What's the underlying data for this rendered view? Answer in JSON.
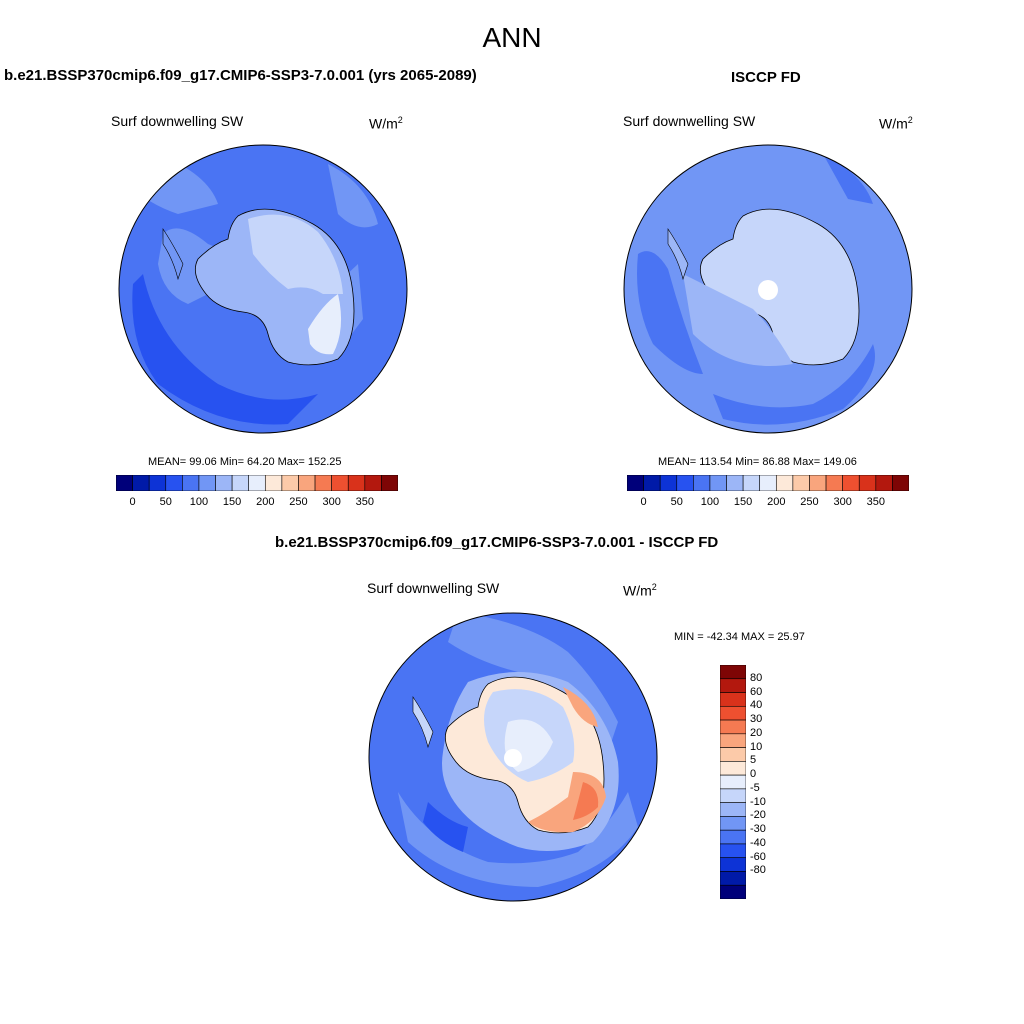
{
  "main_title": "ANN",
  "panels": [
    {
      "title": "b.e21.BSSP370cmip6.f09_g17.CMIP6-SSP3-7.0.001 (yrs 2065-2089)",
      "variable": "Surf downwelling SW",
      "units": "W/m",
      "units_exp": "2",
      "stats": "MEAN=  99.06  Min=  64.20  Max= 152.25"
    },
    {
      "title": "ISCCP FD",
      "variable": "Surf downwelling SW",
      "units": "W/m",
      "units_exp": "2",
      "stats": "MEAN= 113.54  Min=  86.88  Max= 149.06"
    },
    {
      "title": "b.e21.BSSP370cmip6.f09_g17.CMIP6-SSP3-7.0.001 - ISCCP FD",
      "variable": "Surf downwelling SW",
      "units": "W/m",
      "units_exp": "2",
      "stats": "MIN = -42.34 MAX =  25.97"
    }
  ],
  "abs_colorbar": {
    "colors": [
      "#00007a",
      "#001aa8",
      "#0d33d6",
      "#2752f0",
      "#4a74f3",
      "#7196f5",
      "#9cb6f7",
      "#c6d6fa",
      "#e7eefc",
      "#fde9d9",
      "#fccaa9",
      "#f9a57d",
      "#f57a52",
      "#ee5030",
      "#d9321b",
      "#b3180e",
      "#7e0505"
    ],
    "labels": [
      "0",
      "50",
      "100",
      "150",
      "200",
      "250",
      "300",
      "350"
    ]
  },
  "diff_colorbar": {
    "colors": [
      "#7e0505",
      "#b3180e",
      "#d9321b",
      "#ee5030",
      "#f57a52",
      "#f9a57d",
      "#fccaa9",
      "#fde9d9",
      "#e7eefc",
      "#c6d6fa",
      "#9cb6f7",
      "#7196f5",
      "#4a74f3",
      "#2752f0",
      "#0d33d6",
      "#001aa8",
      "#00007a"
    ],
    "labels": [
      "80",
      "60",
      "40",
      "30",
      "20",
      "10",
      "5",
      "0",
      "-5",
      "-10",
      "-20",
      "-30",
      "-40",
      "-60",
      "-80"
    ]
  }
}
